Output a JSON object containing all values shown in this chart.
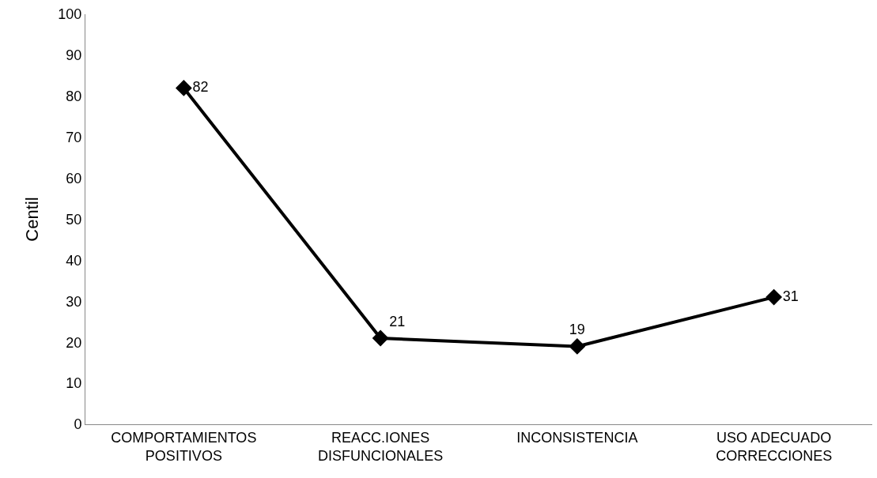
{
  "chart_data": {
    "type": "line",
    "ylabel": "Centil",
    "categories": [
      "COMPORTAMIENTOS POSITIVOS",
      "REACC.IONES DISFUNCIONALES",
      "INCONSISTENCIA",
      "USO ADECUADO CORRECCIONES"
    ],
    "series": [
      {
        "color": "#000000",
        "values": [
          82,
          21,
          19,
          31
        ]
      }
    ],
    "ylim": [
      0,
      100
    ],
    "yticks": [
      0,
      10,
      20,
      30,
      40,
      50,
      60,
      70,
      80,
      90,
      100
    ],
    "grid": false,
    "marker": "diamond",
    "line_style": "solid",
    "data_labels": true
  }
}
